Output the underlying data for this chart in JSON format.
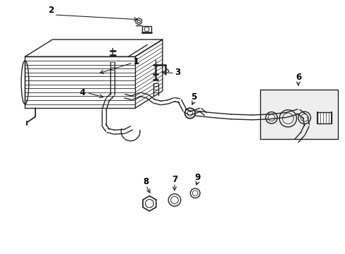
{
  "bg_color": "#ffffff",
  "line_color": "#222222",
  "label_color": "#000000",
  "arrow_color": "#222222",
  "figsize": [
    4.89,
    3.6
  ],
  "dpi": 100
}
